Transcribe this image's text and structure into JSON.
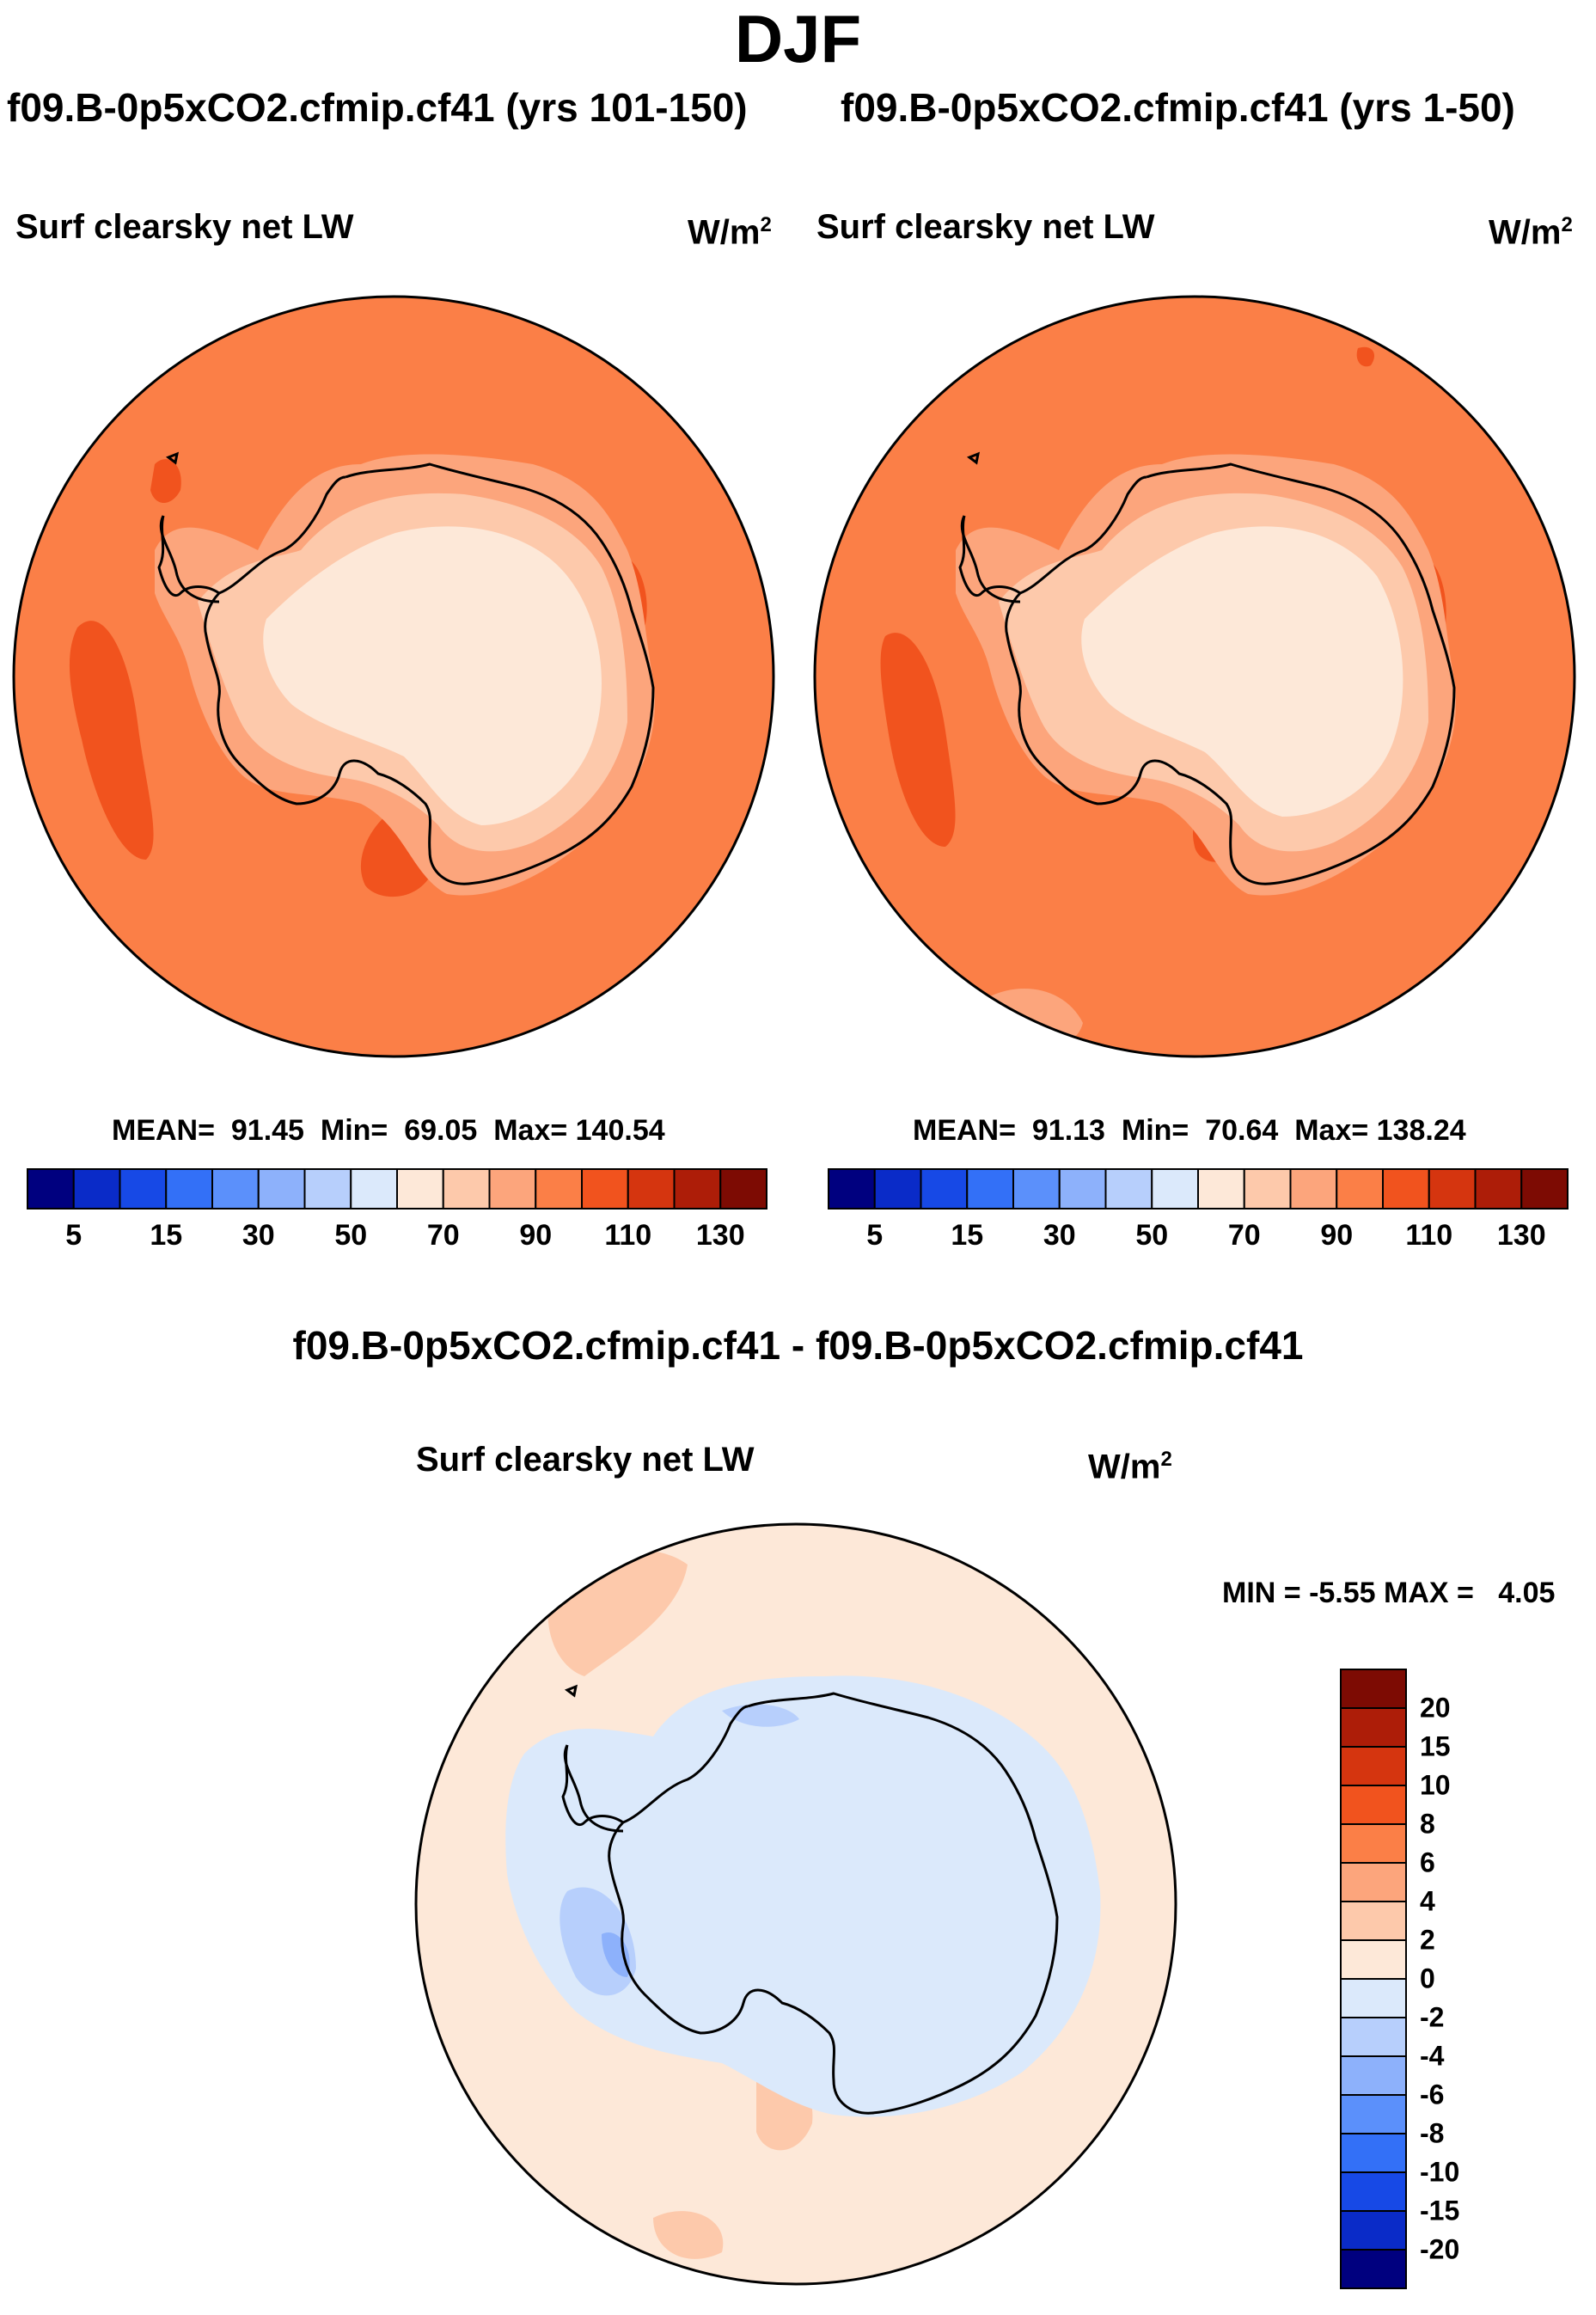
{
  "figure": {
    "title": "DJF",
    "variable": "Surf clearsky net LW",
    "units_base": "W/m",
    "units_exp": "2"
  },
  "panels": [
    {
      "run_title": "f09.B-0p5xCO2.cfmip.cf41 (yrs 101-150)",
      "stats": {
        "mean_label": "MEAN=",
        "mean": "91.45",
        "min_label": "Min=",
        "min": "69.05",
        "max_label": "Max=",
        "max": "140.54"
      }
    },
    {
      "run_title": "f09.B-0p5xCO2.cfmip.cf41 (yrs 1-50)",
      "stats": {
        "mean_label": "MEAN=",
        "mean": "91.13",
        "min_label": "Min=",
        "min": "70.64",
        "max_label": "Max=",
        "max": "138.24"
      }
    }
  ],
  "diff_panel": {
    "title": "f09.B-0p5xCO2.cfmip.cf41 - f09.B-0p5xCO2.cfmip.cf41",
    "min_label": "MIN =",
    "min": "-5.55",
    "max_label": "MAX =",
    "max": "4.05"
  },
  "colorbar_main": {
    "colors": [
      "#00007f",
      "#0a2bc8",
      "#1749e6",
      "#3370f7",
      "#5b90fb",
      "#8db1fb",
      "#b7cffc",
      "#dbe9fb",
      "#fde8d8",
      "#fdc9ab",
      "#fca57c",
      "#fb7f47",
      "#f1531e",
      "#d5350f",
      "#ad1d08",
      "#7d0b03"
    ],
    "tick_labels": [
      "5",
      "15",
      "30",
      "50",
      "70",
      "90",
      "110",
      "130"
    ]
  },
  "colorbar_diff": {
    "colors_top_to_bottom": [
      "#7d0b03",
      "#ad1d08",
      "#d5350f",
      "#f1531e",
      "#fb7f47",
      "#fca57c",
      "#fdc9ab",
      "#fde8d8",
      "#dbe9fb",
      "#b7cffc",
      "#8db1fb",
      "#5b90fb",
      "#3370f7",
      "#1749e6",
      "#0a2bc8",
      "#00007f"
    ],
    "tick_labels": [
      "20",
      "15",
      "10",
      "8",
      "6",
      "4",
      "2",
      "0",
      "-2",
      "-4",
      "-6",
      "-8",
      "-10",
      "-15",
      "-20"
    ]
  },
  "map_colors": {
    "ocean": "#fb7f47",
    "ocean_warm": "#f1531e",
    "ocean_hot": "#d5350f",
    "ocean_pale": "#fca57c",
    "ice_edge": "#fca57c",
    "ice_mid": "#fdc9ab",
    "ice_interior": "#fde8d8",
    "diff_ocean": "#fde8d8",
    "diff_ice": "#dbe9fb",
    "diff_neg": "#b7cffc",
    "diff_neg2": "#8db1fb",
    "diff_pos": "#fdc9ab"
  }
}
